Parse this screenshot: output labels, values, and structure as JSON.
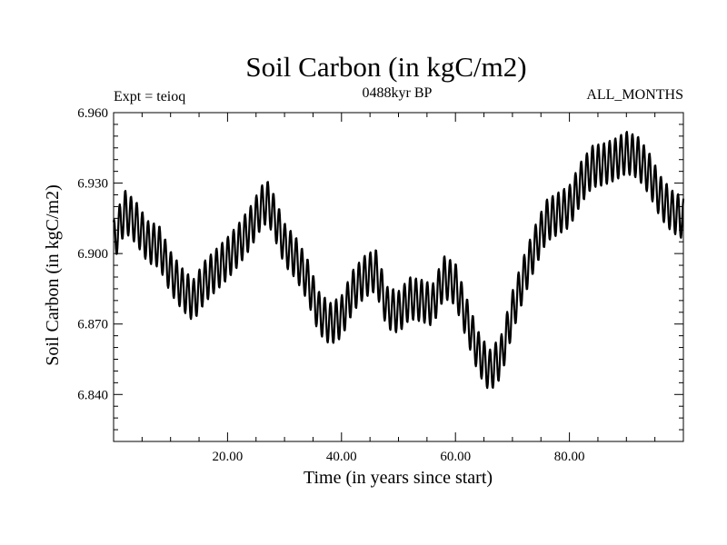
{
  "chart_data": {
    "type": "line",
    "title": "Soil Carbon (in kgC/m2)",
    "subtitle": "0488kyr BP",
    "annotation_left": "Expt = teioq",
    "annotation_right": "ALL_MONTHS",
    "xlabel": "Time (in years since start)",
    "ylabel": "Soil Carbon (in kgC/m2)",
    "xlim": [
      0,
      100
    ],
    "ylim": [
      6.82,
      6.96
    ],
    "xticks": [
      20,
      40,
      60,
      80
    ],
    "xtick_labels": [
      "20.00",
      "40.00",
      "60.00",
      "80.00"
    ],
    "yticks": [
      6.84,
      6.87,
      6.9,
      6.93,
      6.96
    ],
    "ytick_labels": [
      "6.840",
      "6.870",
      "6.900",
      "6.930",
      "6.960"
    ],
    "grid": false,
    "series": [
      {
        "name": "Soil Carbon",
        "note": "annual mean (x in years) with monthly seasonal cycle",
        "seasonal_amplitude": 0.009,
        "x": [
          0,
          2,
          4,
          6,
          8,
          10,
          12,
          14,
          16,
          18,
          20,
          22,
          24,
          26,
          27,
          28,
          30,
          32,
          34,
          36,
          38,
          40,
          42,
          44,
          46,
          48,
          50,
          52,
          54,
          56,
          58,
          60,
          62,
          64,
          66,
          68,
          70,
          72,
          74,
          76,
          78,
          80,
          82,
          84,
          86,
          88,
          90,
          92,
          94,
          96,
          98,
          100
        ],
        "values": [
          6.905,
          6.918,
          6.913,
          6.905,
          6.903,
          6.892,
          6.885,
          6.88,
          6.888,
          6.893,
          6.898,
          6.904,
          6.911,
          6.92,
          6.922,
          6.917,
          6.904,
          6.898,
          6.889,
          6.875,
          6.87,
          6.873,
          6.884,
          6.89,
          6.893,
          6.877,
          6.875,
          6.881,
          6.88,
          6.878,
          6.89,
          6.887,
          6.872,
          6.858,
          6.85,
          6.856,
          6.875,
          6.89,
          6.903,
          6.914,
          6.917,
          6.92,
          6.93,
          6.937,
          6.938,
          6.94,
          6.943,
          6.941,
          6.934,
          6.924,
          6.918,
          6.915
        ]
      }
    ]
  }
}
